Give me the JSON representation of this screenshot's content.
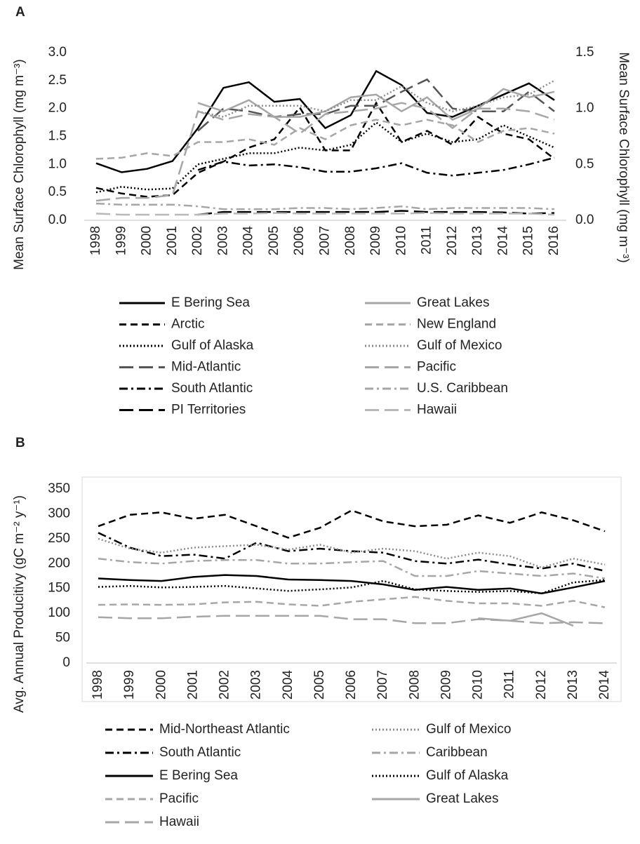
{
  "chart_data": [
    {
      "type": "line",
      "label": "A",
      "y_label": "Mean Surface Chlorophyll (mg m⁻³)",
      "y2_label": "Mean Surface Chlorophyll (mg m⁻³)",
      "categories": [
        "1998",
        "1999",
        "2000",
        "2001",
        "2002",
        "2003",
        "2004",
        "2005",
        "2006",
        "2007",
        "2008",
        "2009",
        "2010",
        "2011",
        "2012",
        "2013",
        "2014",
        "2015",
        "2016"
      ],
      "ylim": [
        0,
        3
      ],
      "yticks": [
        {
          "value": 0,
          "label": "0.0"
        },
        0.5,
        {
          "value": 1,
          "label": "1.0"
        },
        1.5,
        {
          "value": 2,
          "label": "2.0"
        },
        2.5,
        {
          "value": 3,
          "label": "3.0"
        }
      ],
      "y2lim": [
        0,
        1.5
      ],
      "y2ticks": [
        {
          "value": 0,
          "label": "0.0"
        },
        0.5,
        {
          "value": 1,
          "label": "1.0"
        },
        1.5
      ],
      "series": [
        {
          "name": "E Bering Sea",
          "color": "#000000",
          "dash": "solid",
          "values": [
            1.02,
            0.86,
            0.92,
            1.06,
            1.65,
            2.37,
            2.47,
            2.12,
            2.17,
            1.65,
            1.88,
            2.67,
            2.42,
            1.92,
            1.85,
            2.05,
            2.25,
            2.45,
            2.15
          ]
        },
        {
          "name": "Arctic",
          "color": "#000000",
          "dash": "dash",
          "values": [
            0.58,
            0.48,
            0.42,
            0.45,
            0.85,
            1.05,
            1.3,
            1.45,
            2.02,
            1.25,
            1.25,
            2.1,
            1.4,
            1.6,
            1.35,
            1.85,
            1.55,
            1.45,
            1.1
          ]
        },
        {
          "name": "Gulf of Alaska",
          "color": "#000000",
          "dash": "dot",
          "values": [
            0.5,
            0.6,
            0.55,
            0.57,
            1.0,
            1.1,
            1.2,
            1.2,
            1.3,
            1.25,
            1.35,
            1.75,
            1.4,
            1.55,
            1.4,
            1.45,
            1.7,
            1.5,
            1.3
          ]
        },
        {
          "name": "Mid-Atlantic",
          "color": "#555555",
          "dash": "longdash",
          "values": [
            null,
            null,
            null,
            null,
            1.6,
            2.0,
            1.95,
            1.85,
            1.9,
            1.9,
            2.05,
            2.05,
            2.3,
            2.52,
            2.0,
            1.95,
            1.95,
            2.3,
            1.95
          ]
        },
        {
          "name": "South Atlantic",
          "color": "#000000",
          "dash": "dashdot",
          "values": [
            null,
            null,
            null,
            null,
            0.9,
            1.05,
            0.98,
            1.0,
            0.95,
            0.87,
            0.87,
            0.93,
            1.02,
            0.85,
            0.8,
            0.85,
            0.9,
            1.0,
            1.12
          ]
        },
        {
          "name": "PI Territories",
          "color": "#000000",
          "dash": "longdash",
          "values": [
            null,
            null,
            null,
            null,
            0.1,
            0.15,
            0.15,
            0.15,
            0.15,
            0.15,
            0.15,
            0.15,
            0.17,
            0.15,
            0.15,
            0.15,
            0.14,
            0.12,
            0.13
          ]
        },
        {
          "name": "Great Lakes",
          "color": "#a6a6a6",
          "dash": "solid",
          "values": [
            null,
            null,
            null,
            null,
            2.1,
            1.95,
            2.15,
            1.85,
            1.85,
            1.95,
            2.2,
            2.25,
            1.95,
            2.2,
            1.8,
            2.0,
            2.35,
            2.2,
            2.3
          ]
        },
        {
          "name": "New England",
          "color": "#a6a6a6",
          "dash": "dash",
          "values": [
            1.1,
            1.12,
            1.2,
            1.15,
            1.4,
            1.4,
            1.45,
            1.35,
            1.65,
            1.45,
            1.7,
            1.8,
            1.7,
            1.8,
            1.7,
            1.4,
            1.6,
            1.65,
            1.55
          ]
        },
        {
          "name": "Gulf of Mexico",
          "color": "#8c8c8c",
          "dash": "dot",
          "values": [
            null,
            null,
            null,
            null,
            1.95,
            1.85,
            2.05,
            2.05,
            2.05,
            1.95,
            2.15,
            2.15,
            2.4,
            2.1,
            1.95,
            2.05,
            2.2,
            2.25,
            2.5
          ]
        },
        {
          "name": "Pacific",
          "color": "#a6a6a6",
          "dash": "longdash",
          "values": [
            0.35,
            0.4,
            0.4,
            0.45,
            1.95,
            1.8,
            1.9,
            1.85,
            1.55,
            1.9,
            1.95,
            2.0,
            2.1,
            2.0,
            1.65,
            2.0,
            2.0,
            1.95,
            1.8
          ]
        },
        {
          "name": "U.S. Caribbean",
          "color": "#a6a6a6",
          "dash": "dashdot",
          "values": [
            0.3,
            0.28,
            0.28,
            0.28,
            0.25,
            0.2,
            0.2,
            0.2,
            0.22,
            0.22,
            0.2,
            0.22,
            0.25,
            0.2,
            0.22,
            0.22,
            0.22,
            0.22,
            0.2
          ]
        },
        {
          "name": "Hawaii",
          "color": "#b8b8b8",
          "dash": "longdash",
          "values": [
            0.12,
            0.1,
            0.1,
            0.1,
            0.1,
            0.12,
            0.12,
            0.13,
            0.12,
            0.12,
            0.12,
            0.12,
            0.12,
            0.13,
            0.12,
            0.12,
            0.12,
            0.12,
            0.1
          ]
        }
      ]
    },
    {
      "type": "line",
      "label": "B",
      "y_label": "Avg. Annual Producitivy (gC m⁻² y⁻¹)",
      "categories": [
        "1998",
        "1999",
        "2000",
        "2001",
        "2002",
        "2003",
        "2004",
        "2005",
        "2006",
        "2007",
        "2008",
        "2009",
        "2010",
        "2011",
        "2012",
        "2013",
        "2014"
      ],
      "ylim": [
        0,
        350
      ],
      "yticks": [
        0,
        50,
        100,
        150,
        200,
        250,
        300,
        350
      ],
      "series": [
        {
          "name": "Mid-Northeast Atlantic",
          "color": "#000000",
          "dash": "dash",
          "values": [
            275,
            298,
            303,
            290,
            298,
            275,
            252,
            272,
            307,
            285,
            275,
            278,
            297,
            282,
            303,
            287,
            265
          ]
        },
        {
          "name": "South Atlantic",
          "color": "#000000",
          "dash": "dashdot",
          "values": [
            262,
            232,
            215,
            218,
            210,
            242,
            225,
            230,
            225,
            222,
            205,
            200,
            208,
            198,
            190,
            200,
            185
          ]
        },
        {
          "name": "E Bering Sea",
          "color": "#000000",
          "dash": "solid",
          "values": [
            170,
            167,
            165,
            173,
            177,
            175,
            168,
            167,
            165,
            158,
            147,
            153,
            147,
            150,
            140,
            152,
            165
          ]
        },
        {
          "name": "Pacific",
          "color": "#a6a6a6",
          "dash": "dash",
          "values": [
            117,
            118,
            117,
            118,
            122,
            123,
            118,
            115,
            123,
            128,
            133,
            125,
            120,
            120,
            115,
            125,
            112
          ]
        },
        {
          "name": "Hawaii",
          "color": "#a6a6a6",
          "dash": "longdash",
          "values": [
            92,
            90,
            90,
            93,
            95,
            95,
            95,
            95,
            88,
            88,
            80,
            80,
            88,
            85,
            80,
            82,
            80
          ]
        },
        {
          "name": "Gulf of Mexico",
          "color": "#8c8c8c",
          "dash": "dot",
          "values": [
            250,
            230,
            222,
            232,
            235,
            238,
            228,
            238,
            222,
            230,
            225,
            210,
            222,
            215,
            192,
            210,
            198
          ]
        },
        {
          "name": "Caribbean",
          "color": "#a6a6a6",
          "dash": "dashdot",
          "values": [
            210,
            203,
            200,
            205,
            207,
            207,
            200,
            200,
            203,
            205,
            175,
            175,
            185,
            180,
            175,
            180,
            170
          ]
        },
        {
          "name": "Gulf of Alaska",
          "color": "#000000",
          "dash": "dot",
          "values": [
            153,
            155,
            152,
            153,
            155,
            150,
            145,
            148,
            152,
            165,
            148,
            145,
            143,
            145,
            140,
            162,
            167
          ]
        },
        {
          "name": "Great Lakes",
          "color": "#a6a6a6",
          "dash": "solid",
          "values": [
            null,
            null,
            null,
            null,
            null,
            null,
            null,
            null,
            null,
            null,
            null,
            null,
            90,
            85,
            100,
            75,
            null
          ]
        }
      ]
    }
  ]
}
